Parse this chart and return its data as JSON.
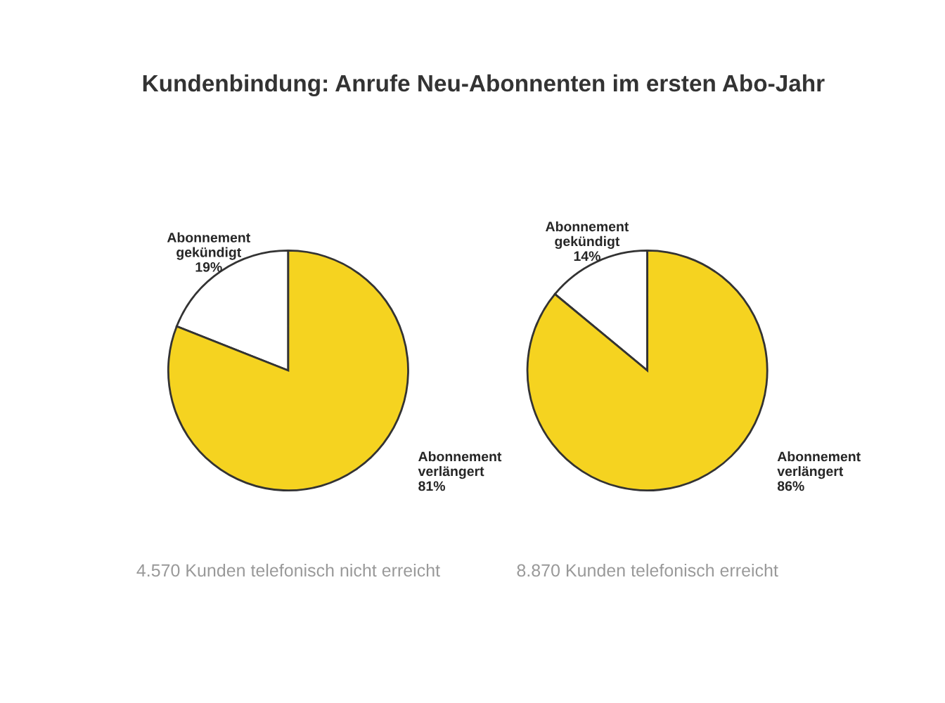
{
  "chart_data": [
    {
      "type": "pie",
      "title": "Kundenbindung: Anrufe Neu-Abonnenten im ersten Abo-Jahr",
      "categories": [
        "Abonnement gekündigt",
        "Abonnement verlängert"
      ],
      "values": [
        19,
        81
      ],
      "value_labels": [
        "19%",
        "81%"
      ],
      "colors": [
        "#ffffff",
        "#f5d320"
      ],
      "annotations": [
        "4.570 Kunden telefonisch nicht erreicht"
      ]
    },
    {
      "type": "pie",
      "categories": [
        "Abonnement gekündigt",
        "Abonnement verlängert"
      ],
      "values": [
        14,
        86
      ],
      "value_labels": [
        "14%",
        "86%"
      ],
      "colors": [
        "#ffffff",
        "#f5d320"
      ],
      "annotations": [
        "8.870 Kunden telefonisch erreicht"
      ]
    }
  ]
}
